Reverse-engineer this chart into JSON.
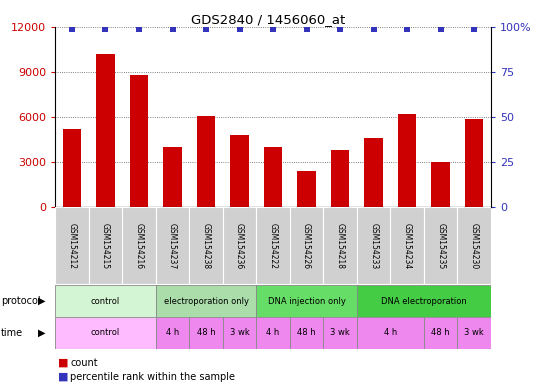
{
  "title": "GDS2840 / 1456060_at",
  "samples": [
    "GSM154212",
    "GSM154215",
    "GSM154216",
    "GSM154237",
    "GSM154238",
    "GSM154236",
    "GSM154222",
    "GSM154226",
    "GSM154218",
    "GSM154233",
    "GSM154234",
    "GSM154235",
    "GSM154230"
  ],
  "counts": [
    5200,
    10200,
    8800,
    4000,
    6100,
    4800,
    4000,
    2400,
    3800,
    4600,
    6200,
    3000,
    5900
  ],
  "percentile_ranks": [
    99,
    99,
    99,
    99,
    99,
    99,
    99,
    99,
    99,
    99,
    99,
    99,
    99
  ],
  "bar_color": "#cc0000",
  "dot_color": "#3333bb",
  "ylim_left": [
    0,
    12000
  ],
  "ylim_right": [
    0,
    100
  ],
  "yticks_left": [
    0,
    3000,
    6000,
    9000,
    12000
  ],
  "yticks_right": [
    0,
    25,
    50,
    75,
    100
  ],
  "ytick_right_labels": [
    "0",
    "25",
    "50",
    "75",
    "100%"
  ],
  "protocol_groups": [
    {
      "label": "control",
      "start": 0,
      "end": 3,
      "color": "#d4f5d4"
    },
    {
      "label": "electroporation only",
      "start": 3,
      "end": 6,
      "color": "#aaddaa"
    },
    {
      "label": "DNA injection only",
      "start": 6,
      "end": 9,
      "color": "#66dd66"
    },
    {
      "label": "DNA electroporation",
      "start": 9,
      "end": 13,
      "color": "#44cc44"
    }
  ],
  "time_groups": [
    {
      "label": "control",
      "start": 0,
      "end": 3
    },
    {
      "label": "4 h",
      "start": 3,
      "end": 4
    },
    {
      "label": "48 h",
      "start": 4,
      "end": 5
    },
    {
      "label": "3 wk",
      "start": 5,
      "end": 6
    },
    {
      "label": "4 h",
      "start": 6,
      "end": 7
    },
    {
      "label": "48 h",
      "start": 7,
      "end": 8
    },
    {
      "label": "3 wk",
      "start": 8,
      "end": 9
    },
    {
      "label": "4 h",
      "start": 9,
      "end": 11
    },
    {
      "label": "48 h",
      "start": 11,
      "end": 12
    },
    {
      "label": "3 wk",
      "start": 12,
      "end": 13
    }
  ],
  "time_color_light": "#ffbbff",
  "time_color_dark": "#ee88ee",
  "legend_count_color": "#cc0000",
  "legend_dot_color": "#3333bb",
  "bg_color": "#ffffff",
  "grid_color": "#555555",
  "tick_label_color_left": "#cc0000",
  "tick_label_color_right": "#3333bb",
  "sample_box_color": "#d0d0d0",
  "n_samples": 13,
  "fig_width": 5.36,
  "fig_height": 3.84
}
